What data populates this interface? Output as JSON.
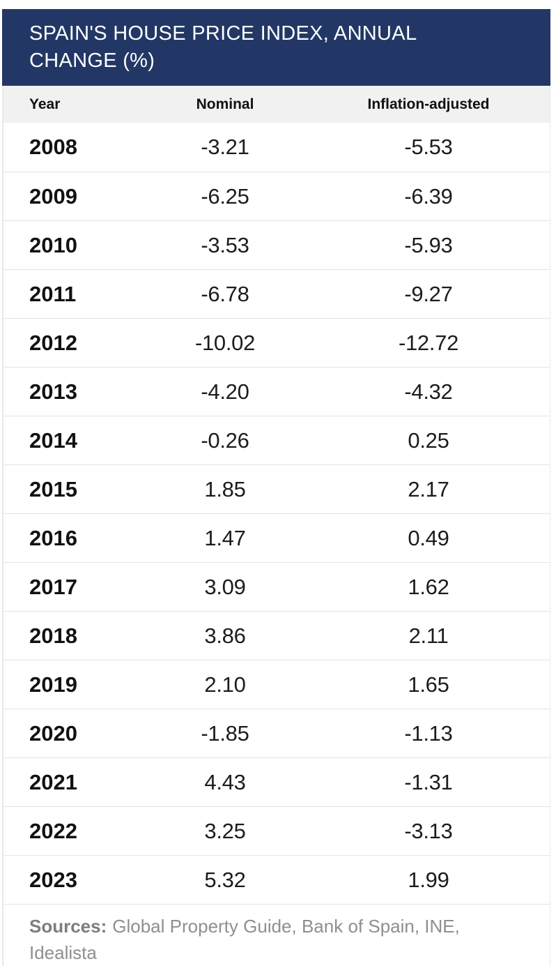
{
  "title": "SPAIN'S HOUSE PRICE INDEX, ANNUAL CHANGE (%)",
  "table": {
    "columns": [
      "Year",
      "Nominal",
      "Inflation-adjusted"
    ],
    "rows": [
      {
        "year": "2008",
        "nominal": "-3.21",
        "inflation_adjusted": "-5.53"
      },
      {
        "year": "2009",
        "nominal": "-6.25",
        "inflation_adjusted": "-6.39"
      },
      {
        "year": "2010",
        "nominal": "-3.53",
        "inflation_adjusted": "-5.93"
      },
      {
        "year": "2011",
        "nominal": "-6.78",
        "inflation_adjusted": "-9.27"
      },
      {
        "year": "2012",
        "nominal": "-10.02",
        "inflation_adjusted": "-12.72"
      },
      {
        "year": "2013",
        "nominal": "-4.20",
        "inflation_adjusted": "-4.32"
      },
      {
        "year": "2014",
        "nominal": "-0.26",
        "inflation_adjusted": "0.25"
      },
      {
        "year": "2015",
        "nominal": "1.85",
        "inflation_adjusted": "2.17"
      },
      {
        "year": "2016",
        "nominal": "1.47",
        "inflation_adjusted": "0.49"
      },
      {
        "year": "2017",
        "nominal": "3.09",
        "inflation_adjusted": "1.62"
      },
      {
        "year": "2018",
        "nominal": "3.86",
        "inflation_adjusted": "2.11"
      },
      {
        "year": "2019",
        "nominal": "2.10",
        "inflation_adjusted": "1.65"
      },
      {
        "year": "2020",
        "nominal": "-1.85",
        "inflation_adjusted": "-1.13"
      },
      {
        "year": "2021",
        "nominal": "4.43",
        "inflation_adjusted": "-1.31"
      },
      {
        "year": "2022",
        "nominal": "3.25",
        "inflation_adjusted": "-3.13"
      },
      {
        "year": "2023",
        "nominal": "5.32",
        "inflation_adjusted": "1.99"
      }
    ]
  },
  "sources": {
    "label": "Sources:",
    "text": "Global Property Guide, Bank of Spain, INE, Idealista"
  },
  "colors": {
    "banner_bg": "#223765",
    "title_text": "#FFFFFF",
    "header_bg": "#F1F1F1",
    "row_border": "#E4E4E4",
    "body_text": "#1C1C1C",
    "muted_text": "#8F8F8F"
  },
  "chart_data": {
    "type": "table",
    "title": "SPAIN'S HOUSE PRICE INDEX, ANNUAL CHANGE (%)",
    "columns": [
      "Year",
      "Nominal",
      "Inflation-adjusted"
    ],
    "categories": [
      "2008",
      "2009",
      "2010",
      "2011",
      "2012",
      "2013",
      "2014",
      "2015",
      "2016",
      "2017",
      "2018",
      "2019",
      "2020",
      "2021",
      "2022",
      "2023"
    ],
    "series": [
      {
        "name": "Nominal",
        "values": [
          -3.21,
          -6.25,
          -3.53,
          -6.78,
          -10.02,
          -4.2,
          -0.26,
          1.85,
          1.47,
          3.09,
          3.86,
          2.1,
          -1.85,
          4.43,
          3.25,
          5.32
        ]
      },
      {
        "name": "Inflation-adjusted",
        "values": [
          -5.53,
          -6.39,
          -5.93,
          -9.27,
          -12.72,
          -4.32,
          0.25,
          2.17,
          0.49,
          1.62,
          2.11,
          1.65,
          -1.13,
          -1.31,
          -3.13,
          1.99
        ]
      }
    ],
    "unit": "% annual change",
    "sources": "Global Property Guide, Bank of Spain, INE, Idealista"
  }
}
